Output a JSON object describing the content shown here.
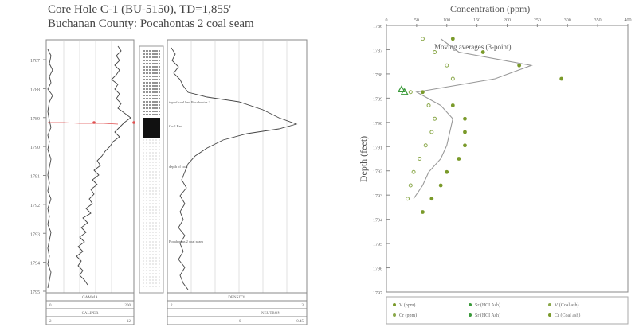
{
  "left_panel": {
    "title_line1": "Core Hole C-1 (BU-5150), TD=1,855'",
    "title_line2": "Buchanan County: Pocahontas 2 coal seam",
    "depth_ticks": [
      "1787",
      "1788",
      "1789",
      "1790",
      "1791",
      "1792",
      "1793",
      "1794",
      "1795"
    ],
    "track_labels": [
      {
        "name": "GAMMA",
        "range_min": "0",
        "range_max": "200"
      },
      {
        "name": "CALIPER",
        "range_min": "2",
        "range_max": "12"
      },
      {
        "name": "DENSITY",
        "range_min": "2",
        "range_max": "3"
      },
      {
        "name": "NEUTRON",
        "range_min": "0",
        "range_max": "-0.45"
      }
    ],
    "annotations": [
      "top of coal bed Pocahontas 2",
      "Coal Bed",
      "depth of coal",
      "Pocahontas 2 coal seam"
    ],
    "colors": {
      "density_marker": "#e05050",
      "curve": "#444444",
      "coal": "#111111"
    }
  },
  "chart_data": {
    "type": "scatter",
    "title": "Concentration (ppm)",
    "annotation": "Moving averages (3-point)",
    "xlabel": "Concentration (ppm)",
    "ylabel": "Depth (feet)",
    "xlim": [
      0,
      400
    ],
    "ylim": [
      1787,
      1807
    ],
    "x_ticks": [
      "0",
      "50",
      "100",
      "150",
      "200",
      "250",
      "300",
      "350",
      "400"
    ],
    "y_ticks": [
      "1786",
      "1787",
      "1788",
      "1789",
      "1790",
      "1791",
      "1792",
      "1793",
      "1794",
      "1795",
      "1796",
      "1797"
    ],
    "y_reversed": true,
    "legend_position": "bottom",
    "series": [
      {
        "name": "V (ppm)",
        "marker": "circle",
        "color": "#7a9a2a",
        "points": [
          [
            110,
            1788
          ],
          [
            160,
            1789
          ],
          [
            220,
            1790
          ],
          [
            290,
            1791
          ],
          [
            60,
            1792
          ],
          [
            110,
            1793
          ],
          [
            130,
            1794
          ],
          [
            130,
            1795
          ],
          [
            130,
            1796
          ],
          [
            120,
            1797
          ],
          [
            100,
            1798
          ],
          [
            90,
            1799
          ],
          [
            75,
            1800
          ],
          [
            60,
            1801
          ]
        ]
      },
      {
        "name": "Cr (ppm)",
        "marker": "circle-open",
        "color": "#8aa84a",
        "points": [
          [
            60,
            1788
          ],
          [
            80,
            1789
          ],
          [
            100,
            1790
          ],
          [
            110,
            1791
          ],
          [
            40,
            1792
          ],
          [
            70,
            1793
          ],
          [
            80,
            1794
          ],
          [
            75,
            1795
          ],
          [
            65,
            1796
          ],
          [
            55,
            1797
          ],
          [
            45,
            1798
          ],
          [
            40,
            1799
          ],
          [
            35,
            1800
          ]
        ]
      },
      {
        "name": "Sr (HCI Ash)",
        "marker": "triangle",
        "color": "#3a9a3a",
        "points": [
          [
            25,
            1791.8
          ],
          [
            30,
            1792
          ]
        ]
      },
      {
        "name": "Moving average",
        "marker": "line",
        "color": "#999999",
        "points": [
          [
            90,
            1788
          ],
          [
            120,
            1789
          ],
          [
            240,
            1790
          ],
          [
            180,
            1791
          ],
          [
            50,
            1792
          ],
          [
            90,
            1793
          ],
          [
            110,
            1794
          ],
          [
            105,
            1795
          ],
          [
            100,
            1796
          ],
          [
            90,
            1797
          ],
          [
            70,
            1798
          ],
          [
            60,
            1799
          ],
          [
            45,
            1800
          ]
        ]
      }
    ],
    "legend": [
      "V (ppm)",
      "Sr (HCI Ash)",
      "V (Coal ash)",
      "Cr (ppm)",
      "Sr (HCI Ash)",
      "Cr (Coal ash)"
    ]
  }
}
